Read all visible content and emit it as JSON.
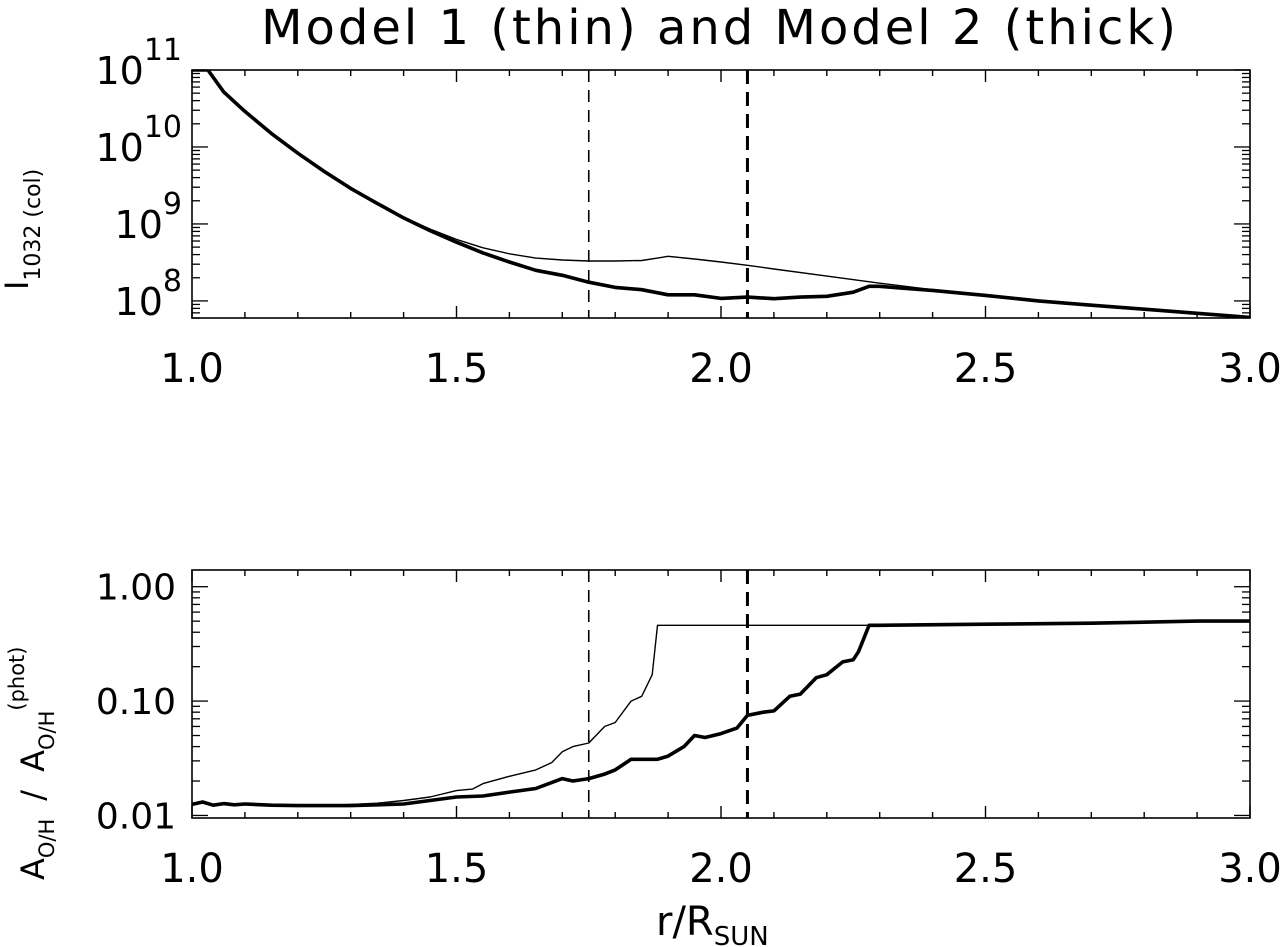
{
  "figure": {
    "title": "Model 1 (thin) and Model 2 (thick)",
    "xlabel_main": "r/R",
    "xlabel_sub": "SUN"
  },
  "chart_data": [
    {
      "type": "line",
      "xlabel": "",
      "ylabel_main": "I",
      "ylabel_sub": "1032 (col)",
      "xlim": [
        1.0,
        3.0
      ],
      "ylim": [
        60000000.0,
        100000000000.0
      ],
      "yscale": "log",
      "xticks": [
        "1.0",
        "1.5",
        "2.0",
        "2.5",
        "3.0"
      ],
      "yticks": [
        {
          "base": "10",
          "exp": "8",
          "value": 100000000.0
        },
        {
          "base": "10",
          "exp": "9",
          "value": 1000000000.0
        },
        {
          "base": "10",
          "exp": "10",
          "value": 10000000000.0
        },
        {
          "base": "10",
          "exp": "11",
          "value": 100000000000.0
        }
      ],
      "vlines": [
        {
          "x": 1.75,
          "style": "thin-dashed"
        },
        {
          "x": 2.05,
          "style": "thick-dashed"
        }
      ],
      "series": [
        {
          "style": "thin",
          "x": [
            1.0,
            1.03,
            1.06,
            1.1,
            1.15,
            1.2,
            1.25,
            1.3,
            1.35,
            1.4,
            1.45,
            1.5,
            1.55,
            1.6,
            1.65,
            1.7,
            1.75,
            1.8,
            1.85,
            1.88,
            1.9,
            1.95,
            2.0,
            2.05,
            2.1,
            2.2,
            2.3,
            2.4,
            2.5,
            2.6,
            2.7,
            2.8,
            2.9,
            3.0
          ],
          "values": [
            100000000000.0,
            100000000000.0,
            52000000000.0,
            29000000000.0,
            15000000000.0,
            8300000000.0,
            4800000000.0,
            2900000000.0,
            1850000000.0,
            1220000000.0,
            860000000.0,
            630000000.0,
            490000000.0,
            410000000.0,
            360000000.0,
            340000000.0,
            330000000.0,
            330000000.0,
            335000000.0,
            360000000.0,
            380000000.0,
            350000000.0,
            320000000.0,
            290000000.0,
            260000000.0,
            210000000.0,
            170000000.0,
            140000000.0,
            118000000.0,
            100000000.0,
            88000000.0,
            78000000.0,
            69000000.0,
            61000000.0
          ]
        },
        {
          "style": "thick",
          "x": [
            1.0,
            1.03,
            1.06,
            1.1,
            1.15,
            1.2,
            1.25,
            1.3,
            1.35,
            1.4,
            1.45,
            1.5,
            1.55,
            1.6,
            1.65,
            1.7,
            1.75,
            1.8,
            1.85,
            1.9,
            1.95,
            2.0,
            2.05,
            2.1,
            2.15,
            2.2,
            2.25,
            2.28,
            2.3,
            2.35,
            2.4,
            2.5,
            2.6,
            2.7,
            2.8,
            2.9,
            3.0
          ],
          "values": [
            100000000000.0,
            100000000000.0,
            52000000000.0,
            29000000000.0,
            15000000000.0,
            8300000000.0,
            4800000000.0,
            2900000000.0,
            1850000000.0,
            1200000000.0,
            820000000.0,
            580000000.0,
            420000000.0,
            320000000.0,
            250000000.0,
            215000000.0,
            175000000.0,
            150000000.0,
            140000000.0,
            120000000.0,
            120000000.0,
            108000000.0,
            112000000.0,
            107000000.0,
            112000000.0,
            115000000.0,
            130000000.0,
            155000000.0,
            155000000.0,
            145000000.0,
            137000000.0,
            118000000.0,
            100000000.0,
            88000000.0,
            78000000.0,
            69000000.0,
            61000000.0
          ]
        }
      ]
    },
    {
      "type": "line",
      "xlabel": "r/R_SUN",
      "ylabel": "A_O/H / A_O/H^(phot)",
      "ylabel_parts": {
        "a1": "A",
        "s1": "O/H",
        "slash": "/",
        "a2": "A",
        "s2": "O/H",
        "sup": "(phot)"
      },
      "xlim": [
        1.0,
        3.0
      ],
      "ylim": [
        0.0095,
        1.4
      ],
      "yscale": "log",
      "xticks": [
        "1.0",
        "1.5",
        "2.0",
        "2.5",
        "3.0"
      ],
      "yticks": [
        {
          "label": "0.01",
          "value": 0.01
        },
        {
          "label": "0.10",
          "value": 0.1
        },
        {
          "label": "1.00",
          "value": 1.0
        }
      ],
      "vlines": [
        {
          "x": 1.75,
          "style": "thin-dashed"
        },
        {
          "x": 2.05,
          "style": "thick-dashed"
        }
      ],
      "series": [
        {
          "style": "thin",
          "x": [
            1.0,
            1.02,
            1.05,
            1.07,
            1.1,
            1.15,
            1.2,
            1.25,
            1.3,
            1.35,
            1.4,
            1.45,
            1.5,
            1.53,
            1.55,
            1.6,
            1.65,
            1.68,
            1.7,
            1.72,
            1.75,
            1.78,
            1.8,
            1.83,
            1.85,
            1.87,
            1.88,
            1.9,
            2.0,
            2.1,
            2.2,
            2.3,
            2.5,
            2.7,
            2.9,
            3.0
          ],
          "values": [
            0.0125,
            0.0128,
            0.0124,
            0.0127,
            0.0125,
            0.0123,
            0.0122,
            0.0122,
            0.0125,
            0.0128,
            0.0135,
            0.0145,
            0.0165,
            0.017,
            0.019,
            0.022,
            0.025,
            0.029,
            0.036,
            0.04,
            0.043,
            0.06,
            0.065,
            0.1,
            0.11,
            0.17,
            0.46,
            0.46,
            0.46,
            0.46,
            0.46,
            0.46,
            0.47,
            0.48,
            0.5,
            0.5
          ]
        },
        {
          "style": "thick",
          "x": [
            1.0,
            1.02,
            1.04,
            1.06,
            1.08,
            1.1,
            1.15,
            1.2,
            1.3,
            1.4,
            1.45,
            1.5,
            1.55,
            1.6,
            1.65,
            1.7,
            1.72,
            1.75,
            1.78,
            1.8,
            1.83,
            1.85,
            1.88,
            1.9,
            1.93,
            1.95,
            1.97,
            2.0,
            2.03,
            2.05,
            2.08,
            2.1,
            2.13,
            2.15,
            2.18,
            2.2,
            2.23,
            2.25,
            2.26,
            2.28,
            2.3,
            2.5,
            2.7,
            2.9,
            3.0
          ],
          "values": [
            0.0125,
            0.0131,
            0.0123,
            0.0127,
            0.0124,
            0.0126,
            0.0123,
            0.0122,
            0.0122,
            0.0126,
            0.0135,
            0.0145,
            0.0148,
            0.016,
            0.0172,
            0.021,
            0.02,
            0.021,
            0.023,
            0.025,
            0.031,
            0.031,
            0.031,
            0.033,
            0.04,
            0.05,
            0.048,
            0.052,
            0.058,
            0.075,
            0.08,
            0.082,
            0.11,
            0.115,
            0.16,
            0.17,
            0.22,
            0.23,
            0.27,
            0.46,
            0.46,
            0.47,
            0.48,
            0.5,
            0.5
          ]
        }
      ]
    }
  ]
}
